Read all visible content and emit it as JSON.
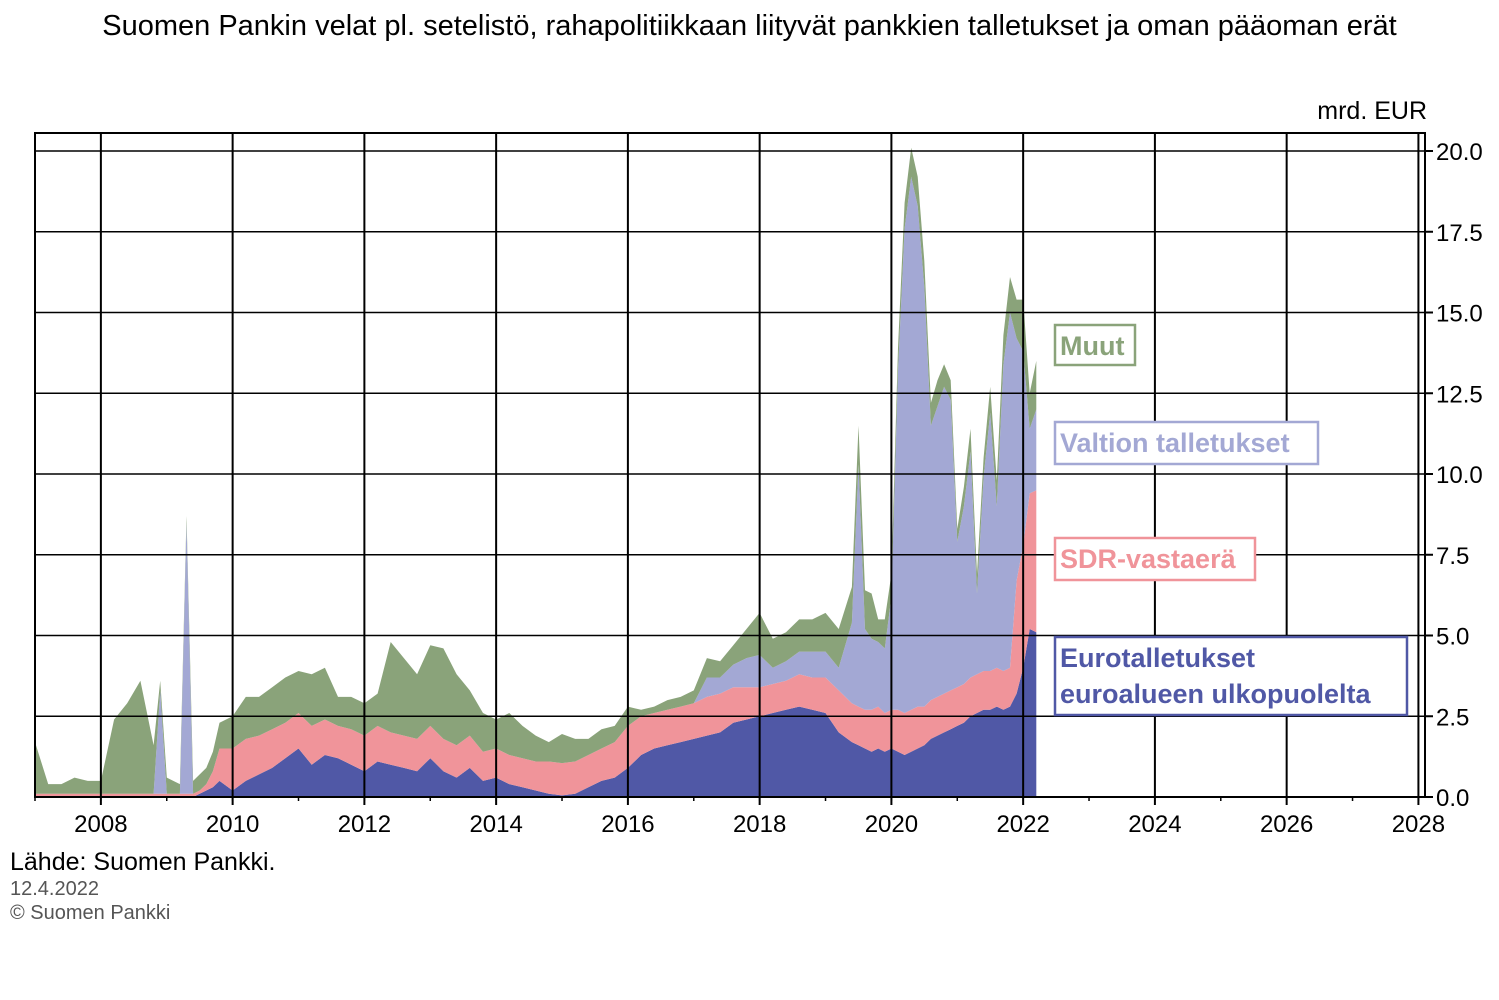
{
  "chart_data": {
    "type": "area",
    "title": "Suomen Pankin velat pl. setelistö, rahapolitiikkaan liityvät pankkien talletukset ja oman pääoman erät",
    "ylabel": "mrd. EUR",
    "xlim": [
      2007.0,
      2028.1
    ],
    "ylim": [
      0,
      20.2
    ],
    "x_ticks": [
      2008,
      2010,
      2012,
      2014,
      2016,
      2018,
      2020,
      2022,
      2024,
      2026,
      2028
    ],
    "x_tick_labels": [
      "2008",
      "2010",
      "2012",
      "2014",
      "2016",
      "2018",
      "2020",
      "2022",
      "2024",
      "2026",
      "2028"
    ],
    "y_ticks": [
      0,
      2.5,
      5,
      7.5,
      10,
      12.5,
      15,
      17.5,
      20
    ],
    "y_tick_labels": [
      "0.0",
      "2.5",
      "5.0",
      "7.5",
      "10.0",
      "12.5",
      "15.0",
      "17.5",
      "20.0"
    ],
    "x": [
      2007.0,
      2007.2,
      2007.4,
      2007.6,
      2007.8,
      2008.0,
      2008.2,
      2008.4,
      2008.6,
      2008.8,
      2008.9,
      2009.0,
      2009.1,
      2009.2,
      2009.3,
      2009.4,
      2009.5,
      2009.6,
      2009.7,
      2009.8,
      2010.0,
      2010.2,
      2010.4,
      2010.6,
      2010.8,
      2011.0,
      2011.2,
      2011.4,
      2011.6,
      2011.8,
      2012.0,
      2012.2,
      2012.4,
      2012.6,
      2012.8,
      2013.0,
      2013.2,
      2013.4,
      2013.6,
      2013.8,
      2014.0,
      2014.2,
      2014.4,
      2014.6,
      2014.8,
      2015.0,
      2015.2,
      2015.4,
      2015.6,
      2015.8,
      2016.0,
      2016.2,
      2016.4,
      2016.6,
      2016.8,
      2017.0,
      2017.2,
      2017.4,
      2017.6,
      2017.8,
      2018.0,
      2018.2,
      2018.4,
      2018.6,
      2018.8,
      2019.0,
      2019.2,
      2019.4,
      2019.5,
      2019.6,
      2019.7,
      2019.8,
      2019.9,
      2020.0,
      2020.1,
      2020.2,
      2020.3,
      2020.4,
      2020.5,
      2020.6,
      2020.7,
      2020.8,
      2020.9,
      2021.0,
      2021.1,
      2021.2,
      2021.3,
      2021.4,
      2021.5,
      2021.6,
      2021.7,
      2021.8,
      2021.9,
      2022.0,
      2022.1,
      2022.2
    ],
    "series": [
      {
        "name": "Eurotalletukset euroalueen ulkopuolelta",
        "color": "#5058a6",
        "values": [
          0,
          0,
          0,
          0,
          0,
          0,
          0,
          0,
          0,
          0,
          0,
          0,
          0,
          0,
          0,
          0,
          0.1,
          0.2,
          0.3,
          0.5,
          0.2,
          0.5,
          0.7,
          0.9,
          1.2,
          1.5,
          1.0,
          1.3,
          1.2,
          1.0,
          0.8,
          1.1,
          1.0,
          0.9,
          0.8,
          1.2,
          0.8,
          0.6,
          0.9,
          0.5,
          0.6,
          0.4,
          0.3,
          0.2,
          0.1,
          0.05,
          0.1,
          0.3,
          0.5,
          0.6,
          0.9,
          1.3,
          1.5,
          1.6,
          1.7,
          1.8,
          1.9,
          2.0,
          2.3,
          2.4,
          2.5,
          2.6,
          2.7,
          2.8,
          2.7,
          2.6,
          2.0,
          1.7,
          1.6,
          1.5,
          1.4,
          1.5,
          1.4,
          1.5,
          1.4,
          1.3,
          1.4,
          1.5,
          1.6,
          1.8,
          1.9,
          2.0,
          2.1,
          2.2,
          2.3,
          2.5,
          2.6,
          2.7,
          2.7,
          2.8,
          2.7,
          2.8,
          3.2,
          4.0,
          5.2,
          5.1
        ]
      },
      {
        "name": "SDR-vastaerä",
        "color": "#f0949a",
        "values": [
          0.1,
          0.1,
          0.1,
          0.1,
          0.1,
          0.1,
          0.1,
          0.1,
          0.1,
          0.1,
          0.1,
          0.1,
          0.1,
          0.1,
          0.1,
          0.1,
          0.1,
          0.2,
          0.5,
          1.0,
          1.3,
          1.3,
          1.2,
          1.2,
          1.1,
          1.1,
          1.2,
          1.1,
          1.0,
          1.1,
          1.1,
          1.1,
          1.0,
          1.0,
          1.0,
          1.0,
          1.0,
          1.0,
          1.0,
          0.9,
          0.9,
          0.9,
          0.9,
          0.9,
          1.0,
          1.0,
          1.0,
          1.0,
          1.0,
          1.1,
          1.3,
          1.2,
          1.1,
          1.1,
          1.1,
          1.1,
          1.2,
          1.2,
          1.1,
          1.0,
          0.9,
          0.9,
          0.9,
          1.0,
          1.0,
          1.1,
          1.3,
          1.2,
          1.2,
          1.2,
          1.3,
          1.3,
          1.2,
          1.2,
          1.3,
          1.3,
          1.3,
          1.3,
          1.2,
          1.2,
          1.2,
          1.2,
          1.2,
          1.2,
          1.2,
          1.2,
          1.2,
          1.2,
          1.2,
          1.2,
          1.2,
          1.2,
          3.5,
          3.8,
          4.2,
          4.4
        ]
      },
      {
        "name": "Valtion talletukset",
        "color": "#a3a8d4",
        "values": [
          0,
          0,
          0,
          0,
          0,
          0,
          0,
          0,
          0,
          0,
          3.2,
          0,
          0,
          0,
          8.4,
          0,
          0,
          0,
          0,
          0,
          0,
          0,
          0,
          0,
          0,
          0,
          0,
          0,
          0,
          0,
          0,
          0,
          0,
          0,
          0,
          0,
          0,
          0,
          0,
          0,
          0,
          0,
          0,
          0,
          0,
          0,
          0,
          0,
          0,
          0,
          0,
          0,
          0,
          0,
          0,
          0,
          0.6,
          0.5,
          0.7,
          0.9,
          1.0,
          0.5,
          0.6,
          0.7,
          0.8,
          0.8,
          0.7,
          2.5,
          7.5,
          2.5,
          2.2,
          2.0,
          2.0,
          3.5,
          10.5,
          15.0,
          16.5,
          15.5,
          13.0,
          8.5,
          9.0,
          9.5,
          9.0,
          4.5,
          5.5,
          7.0,
          2.5,
          6.0,
          8.0,
          5.0,
          9.5,
          11.0,
          7.5,
          6.0,
          2.0,
          2.5
        ]
      },
      {
        "name": "Muut",
        "color": "#8aa37a",
        "values": [
          1.6,
          0.3,
          0.3,
          0.5,
          0.4,
          0.4,
          2.3,
          2.8,
          3.5,
          1.5,
          0.3,
          0.5,
          0.4,
          0.3,
          0.2,
          0.4,
          0.5,
          0.5,
          0.6,
          0.8,
          1.0,
          1.3,
          1.2,
          1.3,
          1.4,
          1.3,
          1.6,
          1.6,
          0.9,
          1.0,
          1.0,
          1.0,
          2.8,
          2.4,
          2.0,
          2.5,
          2.8,
          2.2,
          1.4,
          1.2,
          0.9,
          1.3,
          1.0,
          0.8,
          0.6,
          0.9,
          0.7,
          0.5,
          0.6,
          0.5,
          0.6,
          0.2,
          0.2,
          0.3,
          0.3,
          0.4,
          0.6,
          0.5,
          0.6,
          0.9,
          1.3,
          0.9,
          0.9,
          1.0,
          1.0,
          1.2,
          1.2,
          1.1,
          1.2,
          1.2,
          1.4,
          0.7,
          0.9,
          0.7,
          0.7,
          0.8,
          0.9,
          0.9,
          0.8,
          0.7,
          0.8,
          0.7,
          0.6,
          0.4,
          0.6,
          0.7,
          0.6,
          0.6,
          0.8,
          0.8,
          0.9,
          1.1,
          1.2,
          1.6,
          1.1,
          1.5
        ]
      }
    ],
    "legend": [
      {
        "label": "Muut",
        "color": "#8aa37a"
      },
      {
        "label": "Valtion talletukset",
        "color": "#a3a8d4"
      },
      {
        "label": "SDR-vastaerä",
        "color": "#f0949a"
      },
      {
        "label_lines": [
          "Eurotalletukset",
          "euroalueen ulkopuolelta"
        ],
        "color": "#5058a6"
      }
    ],
    "legend_placement": "right, inside plot"
  },
  "source": "Lähde: Suomen Pankki.",
  "date": "12.4.2022",
  "copyright": "© Suomen Pankki"
}
